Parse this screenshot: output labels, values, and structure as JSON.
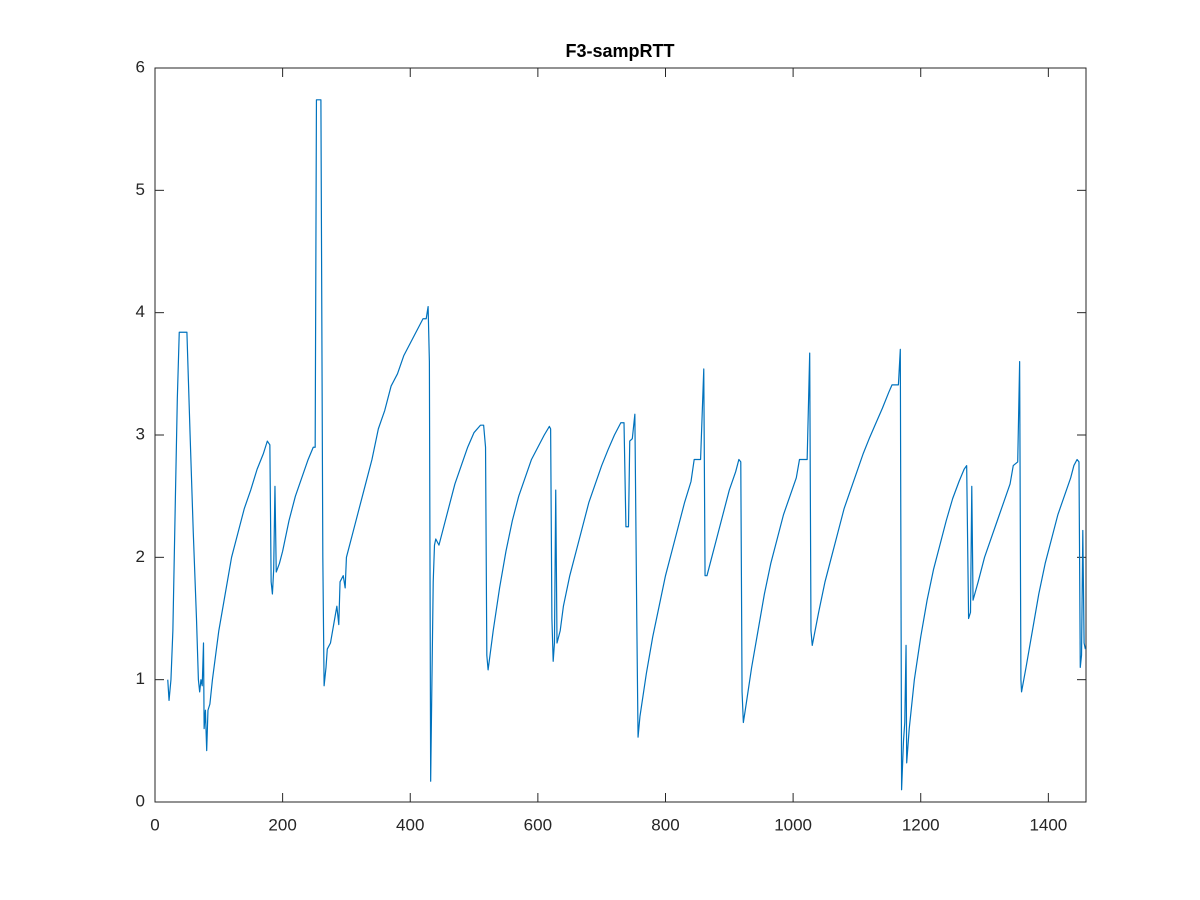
{
  "chart_data": {
    "type": "line",
    "title": "F3-sampRTT",
    "x": [
      20,
      22,
      25,
      28,
      32,
      35,
      38,
      50,
      55,
      60,
      65,
      68,
      70,
      72,
      74,
      76,
      77,
      79,
      81,
      83,
      86,
      90,
      95,
      100,
      110,
      120,
      130,
      140,
      150,
      160,
      170,
      176,
      180,
      182,
      184,
      186,
      188,
      190,
      195,
      200,
      210,
      220,
      230,
      240,
      248,
      251,
      253,
      260,
      263,
      265,
      268,
      270,
      275,
      280,
      285,
      288,
      290,
      295,
      298,
      300,
      310,
      320,
      330,
      340,
      350,
      360,
      370,
      380,
      390,
      400,
      410,
      420,
      425,
      428,
      430,
      432,
      434,
      436,
      438,
      440,
      445,
      450,
      460,
      470,
      480,
      490,
      500,
      510,
      515,
      518,
      520,
      522,
      525,
      530,
      540,
      550,
      560,
      570,
      580,
      590,
      600,
      610,
      618,
      620,
      622,
      624,
      626,
      628,
      630,
      635,
      640,
      650,
      660,
      670,
      680,
      690,
      700,
      710,
      720,
      730,
      735,
      738,
      742,
      744,
      748,
      752,
      755,
      757,
      760,
      770,
      780,
      790,
      800,
      810,
      820,
      830,
      840,
      845,
      855,
      860,
      862,
      865,
      870,
      880,
      890,
      900,
      910,
      915,
      918,
      920,
      922,
      925,
      935,
      945,
      955,
      965,
      975,
      985,
      995,
      1005,
      1010,
      1022,
      1026,
      1028,
      1030,
      1040,
      1050,
      1060,
      1070,
      1080,
      1090,
      1100,
      1110,
      1120,
      1130,
      1140,
      1150,
      1155,
      1165,
      1168,
      1170,
      1173,
      1175,
      1177,
      1178,
      1182,
      1190,
      1200,
      1210,
      1220,
      1230,
      1240,
      1250,
      1260,
      1268,
      1272,
      1275,
      1278,
      1280,
      1282,
      1290,
      1300,
      1310,
      1320,
      1330,
      1340,
      1345,
      1352,
      1355,
      1357,
      1358,
      1365,
      1375,
      1385,
      1395,
      1405,
      1415,
      1425,
      1435,
      1440,
      1445,
      1448,
      1450,
      1452,
      1454,
      1456,
      1458
    ],
    "series": [
      {
        "name": "sampRTT",
        "color": "#0072bd",
        "values": [
          1.0,
          0.83,
          1.0,
          1.4,
          2.5,
          3.3,
          3.84,
          3.84,
          3.0,
          2.2,
          1.5,
          1.0,
          0.9,
          1.0,
          0.95,
          1.3,
          0.6,
          0.75,
          0.42,
          0.75,
          0.8,
          1.0,
          1.2,
          1.4,
          1.7,
          2.0,
          2.2,
          2.4,
          2.55,
          2.72,
          2.85,
          2.95,
          2.92,
          1.8,
          1.7,
          1.9,
          2.58,
          1.88,
          1.95,
          2.05,
          2.3,
          2.5,
          2.65,
          2.8,
          2.9,
          2.9,
          5.74,
          5.74,
          2.0,
          0.95,
          1.1,
          1.25,
          1.3,
          1.45,
          1.6,
          1.45,
          1.8,
          1.85,
          1.75,
          2.0,
          2.2,
          2.4,
          2.6,
          2.8,
          3.05,
          3.2,
          3.4,
          3.5,
          3.65,
          3.75,
          3.85,
          3.95,
          3.95,
          4.05,
          3.6,
          0.17,
          1.0,
          1.8,
          2.1,
          2.15,
          2.1,
          2.2,
          2.4,
          2.6,
          2.75,
          2.9,
          3.02,
          3.08,
          3.08,
          2.9,
          1.2,
          1.08,
          1.2,
          1.4,
          1.75,
          2.05,
          2.3,
          2.5,
          2.65,
          2.8,
          2.9,
          3.0,
          3.07,
          3.05,
          1.5,
          1.15,
          1.3,
          2.55,
          1.3,
          1.4,
          1.6,
          1.85,
          2.05,
          2.25,
          2.45,
          2.6,
          2.75,
          2.88,
          3.0,
          3.1,
          3.1,
          2.25,
          2.25,
          2.95,
          2.97,
          3.17,
          1.5,
          0.53,
          0.7,
          1.05,
          1.35,
          1.6,
          1.85,
          2.05,
          2.25,
          2.45,
          2.62,
          2.8,
          2.8,
          3.54,
          1.85,
          1.85,
          1.95,
          2.15,
          2.35,
          2.55,
          2.7,
          2.8,
          2.78,
          0.9,
          0.65,
          0.75,
          1.1,
          1.4,
          1.7,
          1.95,
          2.15,
          2.35,
          2.5,
          2.65,
          2.8,
          2.8,
          3.67,
          1.4,
          1.28,
          1.55,
          1.8,
          2.0,
          2.2,
          2.4,
          2.55,
          2.7,
          2.85,
          2.98,
          3.1,
          3.22,
          3.35,
          3.41,
          3.41,
          3.7,
          0.1,
          0.5,
          0.65,
          1.28,
          0.32,
          0.6,
          1.0,
          1.35,
          1.65,
          1.9,
          2.1,
          2.3,
          2.48,
          2.62,
          2.72,
          2.75,
          1.5,
          1.55,
          2.58,
          1.65,
          1.8,
          2.0,
          2.15,
          2.3,
          2.45,
          2.6,
          2.75,
          2.78,
          3.6,
          1.0,
          0.9,
          1.1,
          1.4,
          1.7,
          1.95,
          2.15,
          2.35,
          2.5,
          2.65,
          2.75,
          2.8,
          2.78,
          1.1,
          1.2,
          2.22,
          1.3,
          1.25
        ]
      }
    ],
    "xlim": [
      0,
      1459
    ],
    "ylim": [
      0,
      6
    ],
    "xticks": [
      0,
      200,
      400,
      600,
      800,
      1000,
      1200,
      1400
    ],
    "yticks": [
      0,
      1,
      2,
      3,
      4,
      5,
      6
    ]
  }
}
